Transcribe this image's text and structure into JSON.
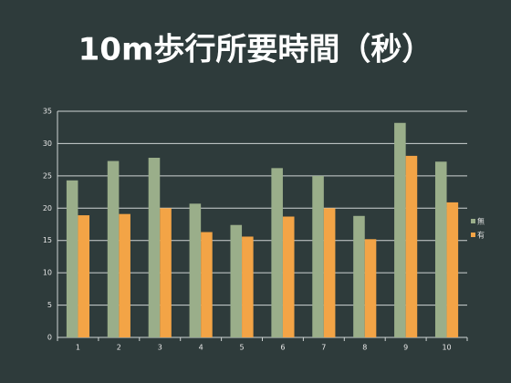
{
  "chart_data": {
    "type": "bar",
    "title": "10m歩行所要時間（秒）",
    "categories": [
      "1",
      "2",
      "3",
      "4",
      "5",
      "6",
      "7",
      "8",
      "9",
      "10"
    ],
    "series": [
      {
        "name": "無",
        "color": "#9aae8a",
        "values": [
          24.3,
          27.3,
          27.8,
          20.7,
          17.4,
          26.2,
          25.0,
          18.8,
          33.2,
          27.2
        ]
      },
      {
        "name": "有",
        "color": "#f3a446",
        "values": [
          18.9,
          19.1,
          20.0,
          16.3,
          15.6,
          18.7,
          20.0,
          15.2,
          28.1,
          20.9
        ]
      }
    ],
    "ylim": [
      0,
      35
    ],
    "yticks": [
      0,
      5,
      10,
      15,
      20,
      25,
      30,
      35
    ],
    "grid": true,
    "legend": "right"
  }
}
